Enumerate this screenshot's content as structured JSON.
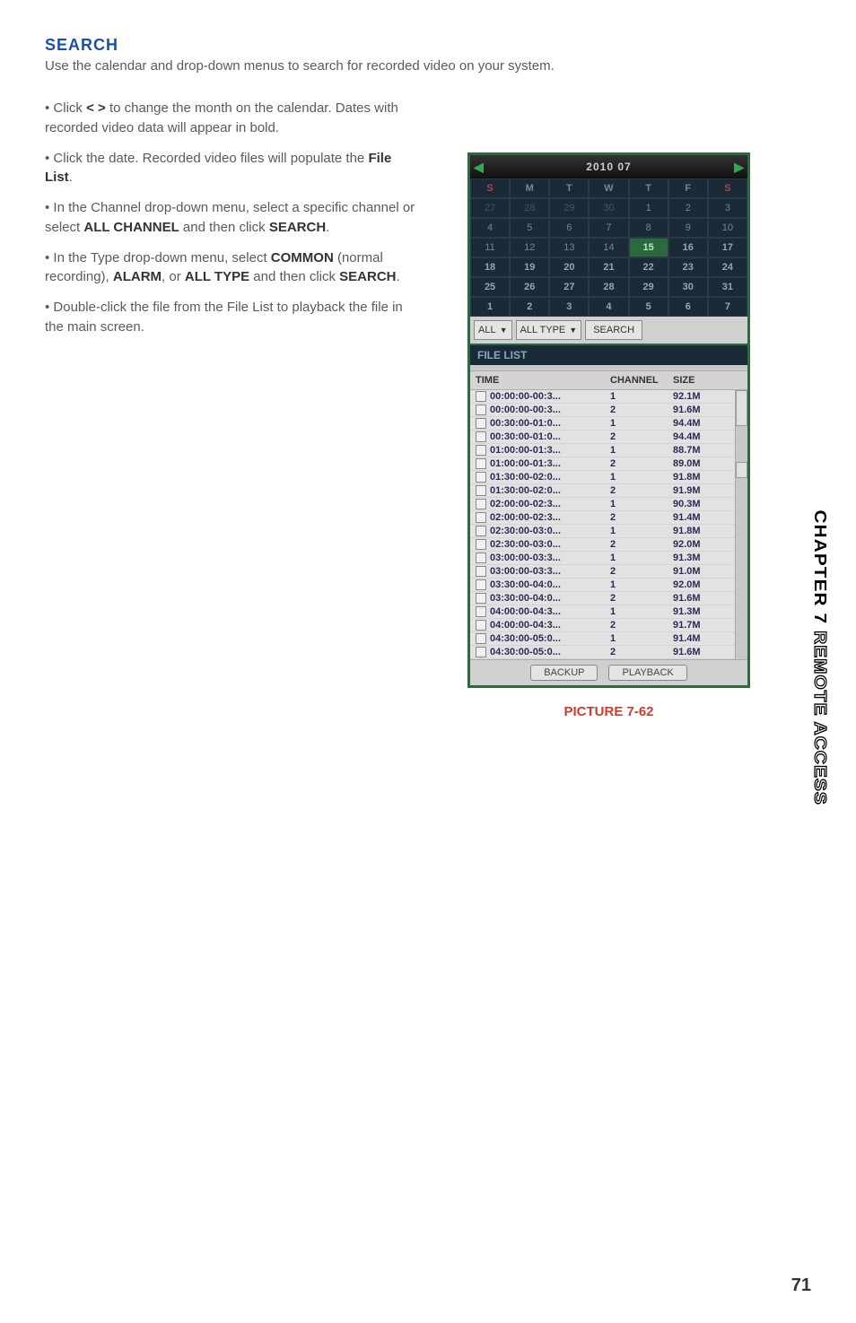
{
  "heading": "SEARCH",
  "intro": "Use the calendar and drop-down menus to search for recorded video on your system.",
  "bullets": {
    "b1a": "• Click ",
    "b1b": "< >",
    "b1c": " to change the month on the calendar. Dates with recorded video data will appear in bold.",
    "b2a": "• Click the date. Recorded video files will populate the ",
    "b2b": "File List",
    "b2c": ".",
    "b3a": "• In the Channel drop-down menu, select a specific channel or select ",
    "b3b": "ALL CHANNEL",
    "b3c": " and then click ",
    "b3d": "SEARCH",
    "b3e": ".",
    "b4a": "• In the Type drop-down menu, select ",
    "b4b": "COMMON",
    "b4c": " (normal recording), ",
    "b4d": "ALARM",
    "b4e": ", or ",
    "b4f": "ALL TYPE",
    "b4g": " and then click ",
    "b4h": "SEARCH",
    "b4i": ".",
    "b5": "• Double-click the file from the File List to playback the file in the main screen."
  },
  "calendar": {
    "title": "2010 07",
    "prev": "◀",
    "next": "▶",
    "days": [
      "S",
      "M",
      "T",
      "W",
      "T",
      "F",
      "S"
    ],
    "weeks": [
      [
        {
          "d": "27",
          "dim": true
        },
        {
          "d": "28",
          "dim": true
        },
        {
          "d": "29",
          "dim": true
        },
        {
          "d": "30",
          "dim": true
        },
        {
          "d": "1"
        },
        {
          "d": "2"
        },
        {
          "d": "3"
        }
      ],
      [
        {
          "d": "4"
        },
        {
          "d": "5"
        },
        {
          "d": "6"
        },
        {
          "d": "7"
        },
        {
          "d": "8"
        },
        {
          "d": "9"
        },
        {
          "d": "10"
        }
      ],
      [
        {
          "d": "11"
        },
        {
          "d": "12"
        },
        {
          "d": "13"
        },
        {
          "d": "14"
        },
        {
          "d": "15",
          "hl": true
        },
        {
          "d": "16",
          "bold": true
        },
        {
          "d": "17",
          "bold": true
        }
      ],
      [
        {
          "d": "18",
          "bold": true
        },
        {
          "d": "19",
          "bold": true
        },
        {
          "d": "20",
          "bold": true
        },
        {
          "d": "21",
          "bold": true
        },
        {
          "d": "22",
          "bold": true
        },
        {
          "d": "23",
          "bold": true
        },
        {
          "d": "24",
          "bold": true
        }
      ],
      [
        {
          "d": "25",
          "bold": true
        },
        {
          "d": "26",
          "bold": true
        },
        {
          "d": "27",
          "bold": true
        },
        {
          "d": "28",
          "bold": true
        },
        {
          "d": "29",
          "bold": true
        },
        {
          "d": "30",
          "bold": true
        },
        {
          "d": "31",
          "bold": true
        }
      ],
      [
        {
          "d": "1",
          "bold": true
        },
        {
          "d": "2",
          "bold": true
        },
        {
          "d": "3",
          "bold": true
        },
        {
          "d": "4",
          "bold": true
        },
        {
          "d": "5",
          "bold": true
        },
        {
          "d": "6",
          "bold": true
        },
        {
          "d": "7",
          "bold": true
        }
      ]
    ]
  },
  "dropdowns": {
    "channel": "ALL",
    "type": "ALL TYPE",
    "search": "SEARCH"
  },
  "filelist": {
    "tab": "FILE LIST",
    "headers": {
      "time": "TIME",
      "channel": "CHANNEL",
      "size": "SIZE"
    },
    "rows": [
      {
        "t": "00:00:00-00:3...",
        "c": "1",
        "s": "92.1M"
      },
      {
        "t": "00:00:00-00:3...",
        "c": "2",
        "s": "91.6M"
      },
      {
        "t": "00:30:00-01:0...",
        "c": "1",
        "s": "94.4M"
      },
      {
        "t": "00:30:00-01:0...",
        "c": "2",
        "s": "94.4M"
      },
      {
        "t": "01:00:00-01:3...",
        "c": "1",
        "s": "88.7M"
      },
      {
        "t": "01:00:00-01:3...",
        "c": "2",
        "s": "89.0M"
      },
      {
        "t": "01:30:00-02:0...",
        "c": "1",
        "s": "91.8M"
      },
      {
        "t": "01:30:00-02:0...",
        "c": "2",
        "s": "91.9M"
      },
      {
        "t": "02:00:00-02:3...",
        "c": "1",
        "s": "90.3M"
      },
      {
        "t": "02:00:00-02:3...",
        "c": "2",
        "s": "91.4M"
      },
      {
        "t": "02:30:00-03:0...",
        "c": "1",
        "s": "91.8M"
      },
      {
        "t": "02:30:00-03:0...",
        "c": "2",
        "s": "92.0M"
      },
      {
        "t": "03:00:00-03:3...",
        "c": "1",
        "s": "91.3M"
      },
      {
        "t": "03:00:00-03:3...",
        "c": "2",
        "s": "91.0M"
      },
      {
        "t": "03:30:00-04:0...",
        "c": "1",
        "s": "92.0M"
      },
      {
        "t": "03:30:00-04:0...",
        "c": "2",
        "s": "91.6M"
      },
      {
        "t": "04:00:00-04:3...",
        "c": "1",
        "s": "91.3M"
      },
      {
        "t": "04:00:00-04:3...",
        "c": "2",
        "s": "91.7M"
      },
      {
        "t": "04:30:00-05:0...",
        "c": "1",
        "s": "91.4M"
      },
      {
        "t": "04:30:00-05:0...",
        "c": "2",
        "s": "91.6M"
      }
    ]
  },
  "footer": {
    "backup": "BACKUP",
    "playback": "PLAYBACK"
  },
  "caption": "PICTURE 7-62",
  "sidetab": {
    "ch": "CHAPTER 7",
    "rest": " REMOTE ACCESS"
  },
  "page": "71"
}
